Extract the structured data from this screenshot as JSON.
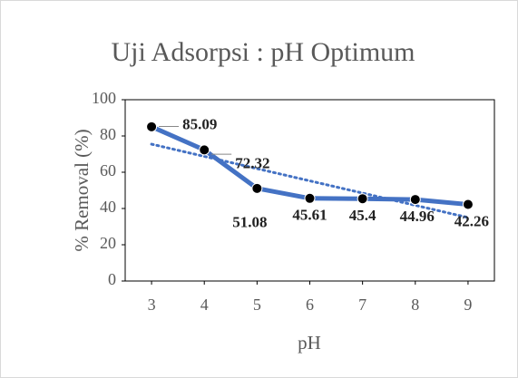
{
  "chart_data": {
    "type": "line",
    "title": "Uji Adsorpsi : pH Optimum",
    "x_label": "pH",
    "y_label": "% Removal (%)",
    "x": [
      3,
      4,
      5,
      6,
      7,
      8,
      9
    ],
    "series": [
      {
        "name": "% Removal",
        "color": "#4472c4",
        "marker_color": "#000000",
        "values": [
          85.09,
          72.32,
          51.08,
          45.61,
          45.4,
          44.96,
          42.26
        ]
      }
    ],
    "xlim": [
      2.5,
      9.5
    ],
    "xticks": [
      3,
      4,
      5,
      6,
      7,
      8,
      9
    ],
    "ylim": [
      0,
      100
    ],
    "yticks": [
      0,
      20,
      40,
      60,
      80,
      100
    ],
    "trendline": "linear",
    "trendline_color": "#4472c4"
  }
}
